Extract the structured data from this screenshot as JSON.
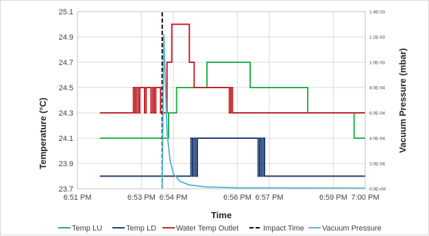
{
  "chart_data": {
    "type": "line",
    "title": "",
    "xlabel": "Time",
    "ylabel": "Temperature (°C)",
    "y2label": "Vacuum Pressure (mbar)",
    "x_unit": "minutes since 6:51 PM",
    "xlim": [
      0,
      9
    ],
    "ylim": [
      23.7,
      25.1
    ],
    "y2lim": [
      0,
      0.0014
    ],
    "x_tick_values": [
      0,
      2,
      3,
      5,
      6,
      8,
      9
    ],
    "x_tick_labels": [
      "6:51 PM",
      "6:53 PM",
      "6:54 PM",
      "6:56 PM",
      "6:57 PM",
      "6:59 PM",
      "7:00 PM"
    ],
    "y_ticks": [
      "25.1",
      "24.9",
      "24.7",
      "24.5",
      "24.3",
      "24.1",
      "23.9",
      "23.7"
    ],
    "y2_ticks": [
      "1.4E-03",
      "1.2E-03",
      "1.0E-03",
      "8.0E-04",
      "6.0E-04",
      "4.0E-04",
      "2.0E-04",
      "0.0E+00"
    ],
    "grid": true,
    "legend_position": "bottom",
    "impact_time": 2.65,
    "series": [
      {
        "name": "Temp LU",
        "color": "#1fb24a",
        "axis": "left",
        "x": [
          0.7,
          2.85,
          2.85,
          3.1,
          3.1,
          4.05,
          4.05,
          5.4,
          5.4,
          5.45,
          5.45,
          7.2,
          7.2,
          8.65,
          8.65,
          9.0
        ],
        "y": [
          24.1,
          24.1,
          24.3,
          24.3,
          24.5,
          24.5,
          24.7,
          24.7,
          24.5,
          24.5,
          24.5,
          24.5,
          24.3,
          24.3,
          24.1,
          24.1
        ]
      },
      {
        "name": "Temp LD",
        "color": "#1f3d70",
        "axis": "left",
        "x": [
          0.7,
          3.55,
          3.55,
          3.6,
          3.6,
          3.65,
          3.65,
          3.7,
          3.7,
          3.75,
          3.75,
          3.85,
          3.85,
          5.65,
          5.65,
          5.7,
          5.7,
          5.75,
          5.75,
          5.8,
          5.8,
          5.85,
          5.85,
          9.0
        ],
        "y": [
          23.8,
          23.8,
          24.1,
          24.1,
          23.8,
          23.8,
          24.1,
          24.1,
          23.8,
          23.8,
          24.1,
          24.1,
          24.1,
          24.1,
          23.8,
          23.8,
          24.1,
          24.1,
          23.8,
          23.8,
          24.1,
          24.1,
          23.8,
          23.8
        ]
      },
      {
        "name": "Water Temp Outlet",
        "color": "#c0222a",
        "axis": "left",
        "x": [
          0.7,
          1.75,
          1.75,
          1.8,
          1.8,
          1.85,
          1.85,
          1.9,
          1.9,
          1.95,
          1.95,
          2.1,
          2.1,
          2.15,
          2.15,
          2.3,
          2.3,
          2.35,
          2.35,
          2.4,
          2.4,
          2.45,
          2.45,
          2.6,
          2.6,
          2.8,
          2.8,
          2.95,
          2.95,
          3.05,
          3.05,
          3.5,
          3.5,
          3.65,
          3.65,
          4.75,
          4.75,
          4.8,
          4.8,
          4.85,
          4.85,
          9.0
        ],
        "y": [
          24.3,
          24.3,
          24.5,
          24.5,
          24.3,
          24.3,
          24.5,
          24.5,
          24.3,
          24.3,
          24.5,
          24.5,
          24.3,
          24.3,
          24.5,
          24.5,
          24.3,
          24.3,
          24.5,
          24.5,
          24.3,
          24.3,
          24.5,
          24.5,
          24.3,
          24.3,
          24.7,
          24.7,
          25.0,
          25.0,
          25.0,
          25.0,
          24.7,
          24.7,
          24.5,
          24.5,
          24.3,
          24.3,
          24.5,
          24.5,
          24.3,
          24.3
        ]
      },
      {
        "name": "Impact Time",
        "color": "#000000",
        "axis": "left",
        "dash": true,
        "x": [
          2.65,
          2.65
        ],
        "y": [
          23.7,
          25.1
        ]
      },
      {
        "name": "Vacuum Pressure",
        "color": "#5bb8d0",
        "axis": "right",
        "x": [
          2.65,
          2.7,
          2.75,
          2.8,
          2.9,
          3.0,
          3.2,
          3.5,
          4.0,
          5.0,
          9.0
        ],
        "y": [
          0.0,
          0.00122,
          0.00085,
          0.00045,
          0.00022,
          0.00012,
          6e-05,
          3e-05,
          1.5e-05,
          8e-06,
          5e-06
        ]
      }
    ]
  }
}
